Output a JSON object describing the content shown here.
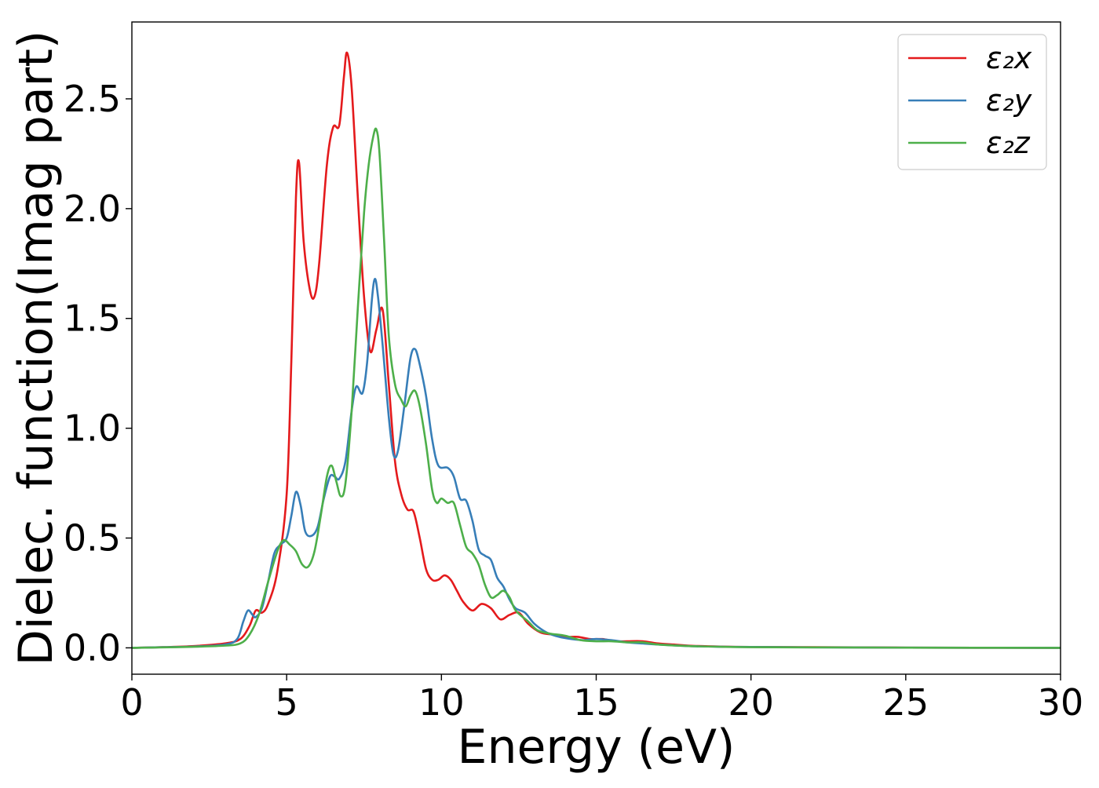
{
  "chart_data": {
    "type": "line",
    "title": "",
    "xlabel": "Energy (eV)",
    "ylabel": "Dielec. function(Imag part)",
    "xlim": [
      0,
      30
    ],
    "ylim": [
      -0.12,
      2.85
    ],
    "xticks": [
      0,
      5,
      10,
      15,
      20,
      25,
      30
    ],
    "xtick_labels": [
      "0",
      "5",
      "10",
      "15",
      "20",
      "25",
      "30"
    ],
    "yticks": [
      0.0,
      0.5,
      1.0,
      1.5,
      2.0,
      2.5
    ],
    "ytick_labels": [
      "0.0",
      "0.5",
      "1.0",
      "1.5",
      "2.0",
      "2.5"
    ],
    "grid": false,
    "legend_position": "top-right",
    "series": [
      {
        "name": "ε₂x",
        "color": "#e41a1c",
        "points": [
          [
            0,
            0
          ],
          [
            1,
            0.003
          ],
          [
            2,
            0.008
          ],
          [
            3,
            0.02
          ],
          [
            3.5,
            0.04
          ],
          [
            3.8,
            0.1
          ],
          [
            4.0,
            0.17
          ],
          [
            4.2,
            0.16
          ],
          [
            4.4,
            0.2
          ],
          [
            4.7,
            0.35
          ],
          [
            5.0,
            0.7
          ],
          [
            5.15,
            1.3
          ],
          [
            5.3,
            2.05
          ],
          [
            5.4,
            2.21
          ],
          [
            5.55,
            1.85
          ],
          [
            5.75,
            1.63
          ],
          [
            5.9,
            1.6
          ],
          [
            6.05,
            1.75
          ],
          [
            6.3,
            2.2
          ],
          [
            6.5,
            2.37
          ],
          [
            6.7,
            2.38
          ],
          [
            6.85,
            2.6
          ],
          [
            6.95,
            2.71
          ],
          [
            7.1,
            2.55
          ],
          [
            7.3,
            2.05
          ],
          [
            7.5,
            1.6
          ],
          [
            7.7,
            1.35
          ],
          [
            7.9,
            1.45
          ],
          [
            8.1,
            1.54
          ],
          [
            8.3,
            1.2
          ],
          [
            8.5,
            0.85
          ],
          [
            8.7,
            0.7
          ],
          [
            8.9,
            0.63
          ],
          [
            9.1,
            0.62
          ],
          [
            9.3,
            0.5
          ],
          [
            9.5,
            0.36
          ],
          [
            9.7,
            0.31
          ],
          [
            9.9,
            0.31
          ],
          [
            10.1,
            0.33
          ],
          [
            10.3,
            0.31
          ],
          [
            10.5,
            0.26
          ],
          [
            10.7,
            0.21
          ],
          [
            11.0,
            0.17
          ],
          [
            11.3,
            0.2
          ],
          [
            11.6,
            0.18
          ],
          [
            11.9,
            0.13
          ],
          [
            12.2,
            0.15
          ],
          [
            12.5,
            0.16
          ],
          [
            12.8,
            0.11
          ],
          [
            13.2,
            0.07
          ],
          [
            13.6,
            0.06
          ],
          [
            14.0,
            0.05
          ],
          [
            14.4,
            0.05
          ],
          [
            14.8,
            0.04
          ],
          [
            15.2,
            0.04
          ],
          [
            15.6,
            0.03
          ],
          [
            16.0,
            0.03
          ],
          [
            16.5,
            0.03
          ],
          [
            17.0,
            0.02
          ],
          [
            17.5,
            0.015
          ],
          [
            18,
            0.01
          ],
          [
            19,
            0.006
          ],
          [
            20,
            0.004
          ],
          [
            22,
            0.003
          ],
          [
            25,
            0.001
          ],
          [
            30,
            0
          ]
        ]
      },
      {
        "name": "ε₂y",
        "color": "#377eb8",
        "points": [
          [
            0,
            0
          ],
          [
            1,
            0.003
          ],
          [
            2,
            0.006
          ],
          [
            3,
            0.015
          ],
          [
            3.4,
            0.04
          ],
          [
            3.6,
            0.12
          ],
          [
            3.75,
            0.17
          ],
          [
            3.9,
            0.15
          ],
          [
            4.0,
            0.14
          ],
          [
            4.2,
            0.18
          ],
          [
            4.4,
            0.3
          ],
          [
            4.6,
            0.43
          ],
          [
            4.8,
            0.47
          ],
          [
            5.0,
            0.5
          ],
          [
            5.15,
            0.6
          ],
          [
            5.3,
            0.71
          ],
          [
            5.45,
            0.65
          ],
          [
            5.6,
            0.53
          ],
          [
            5.8,
            0.51
          ],
          [
            6.0,
            0.55
          ],
          [
            6.2,
            0.68
          ],
          [
            6.4,
            0.78
          ],
          [
            6.55,
            0.78
          ],
          [
            6.7,
            0.77
          ],
          [
            6.9,
            0.85
          ],
          [
            7.1,
            1.08
          ],
          [
            7.25,
            1.19
          ],
          [
            7.45,
            1.16
          ],
          [
            7.6,
            1.3
          ],
          [
            7.75,
            1.58
          ],
          [
            7.85,
            1.68
          ],
          [
            7.95,
            1.6
          ],
          [
            8.1,
            1.38
          ],
          [
            8.3,
            1.05
          ],
          [
            8.45,
            0.88
          ],
          [
            8.6,
            0.9
          ],
          [
            8.8,
            1.1
          ],
          [
            9.0,
            1.32
          ],
          [
            9.15,
            1.36
          ],
          [
            9.3,
            1.29
          ],
          [
            9.5,
            1.15
          ],
          [
            9.7,
            0.95
          ],
          [
            9.9,
            0.83
          ],
          [
            10.2,
            0.82
          ],
          [
            10.4,
            0.78
          ],
          [
            10.6,
            0.68
          ],
          [
            10.8,
            0.67
          ],
          [
            11.0,
            0.58
          ],
          [
            11.2,
            0.45
          ],
          [
            11.4,
            0.42
          ],
          [
            11.6,
            0.4
          ],
          [
            11.8,
            0.32
          ],
          [
            12.0,
            0.28
          ],
          [
            12.2,
            0.22
          ],
          [
            12.4,
            0.18
          ],
          [
            12.7,
            0.16
          ],
          [
            13.0,
            0.11
          ],
          [
            13.4,
            0.07
          ],
          [
            13.8,
            0.05
          ],
          [
            14.2,
            0.04
          ],
          [
            14.6,
            0.035
          ],
          [
            15.0,
            0.04
          ],
          [
            15.5,
            0.035
          ],
          [
            16.0,
            0.025
          ],
          [
            16.5,
            0.02
          ],
          [
            17.0,
            0.015
          ],
          [
            18,
            0.008
          ],
          [
            19,
            0.005
          ],
          [
            20,
            0.004
          ],
          [
            22,
            0.002
          ],
          [
            25,
            0.001
          ],
          [
            30,
            0
          ]
        ]
      },
      {
        "name": "ε₂z",
        "color": "#4daf4a",
        "points": [
          [
            0,
            0
          ],
          [
            1,
            0.002
          ],
          [
            2,
            0.005
          ],
          [
            3,
            0.01
          ],
          [
            3.5,
            0.02
          ],
          [
            3.8,
            0.06
          ],
          [
            4.1,
            0.15
          ],
          [
            4.4,
            0.3
          ],
          [
            4.7,
            0.44
          ],
          [
            4.9,
            0.49
          ],
          [
            5.1,
            0.47
          ],
          [
            5.3,
            0.44
          ],
          [
            5.5,
            0.38
          ],
          [
            5.7,
            0.37
          ],
          [
            5.9,
            0.44
          ],
          [
            6.1,
            0.6
          ],
          [
            6.3,
            0.78
          ],
          [
            6.45,
            0.83
          ],
          [
            6.6,
            0.76
          ],
          [
            6.75,
            0.69
          ],
          [
            6.9,
            0.75
          ],
          [
            7.1,
            1.08
          ],
          [
            7.3,
            1.55
          ],
          [
            7.5,
            1.98
          ],
          [
            7.65,
            2.2
          ],
          [
            7.8,
            2.33
          ],
          [
            7.9,
            2.36
          ],
          [
            8.0,
            2.25
          ],
          [
            8.15,
            1.85
          ],
          [
            8.3,
            1.42
          ],
          [
            8.5,
            1.2
          ],
          [
            8.7,
            1.13
          ],
          [
            8.85,
            1.1
          ],
          [
            9.0,
            1.15
          ],
          [
            9.15,
            1.17
          ],
          [
            9.3,
            1.1
          ],
          [
            9.5,
            0.93
          ],
          [
            9.7,
            0.72
          ],
          [
            9.85,
            0.66
          ],
          [
            10.0,
            0.68
          ],
          [
            10.2,
            0.66
          ],
          [
            10.4,
            0.66
          ],
          [
            10.6,
            0.56
          ],
          [
            10.8,
            0.46
          ],
          [
            11.0,
            0.43
          ],
          [
            11.2,
            0.38
          ],
          [
            11.4,
            0.29
          ],
          [
            11.6,
            0.23
          ],
          [
            11.8,
            0.24
          ],
          [
            12.0,
            0.26
          ],
          [
            12.2,
            0.23
          ],
          [
            12.4,
            0.17
          ],
          [
            12.8,
            0.12
          ],
          [
            13.1,
            0.08
          ],
          [
            13.5,
            0.065
          ],
          [
            14.0,
            0.055
          ],
          [
            14.5,
            0.035
          ],
          [
            15.0,
            0.03
          ],
          [
            15.5,
            0.03
          ],
          [
            16.0,
            0.025
          ],
          [
            16.5,
            0.025
          ],
          [
            17.0,
            0.015
          ],
          [
            18,
            0.008
          ],
          [
            19,
            0.005
          ],
          [
            20,
            0.003
          ],
          [
            22,
            0.002
          ],
          [
            25,
            0.001
          ],
          [
            30,
            0
          ]
        ]
      }
    ]
  }
}
